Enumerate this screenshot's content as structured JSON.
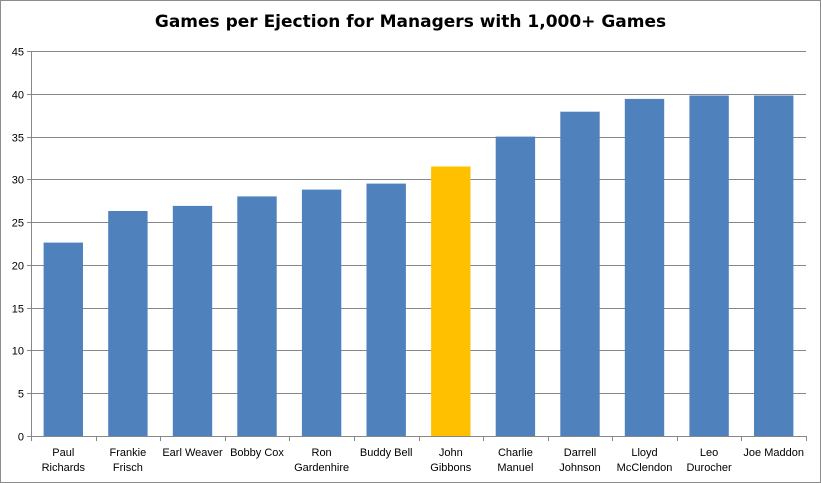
{
  "chart_data": {
    "type": "bar",
    "title": "Games per Ejection for Managers with 1,000+ Games",
    "xlabel": "",
    "ylabel": "",
    "ylim": [
      0,
      45
    ],
    "yticks": [
      0,
      5,
      10,
      15,
      20,
      25,
      30,
      35,
      40,
      45
    ],
    "grid": "horizontal",
    "legend": "none",
    "categories": [
      [
        "Paul",
        "Richards"
      ],
      [
        "Frankie",
        "Frisch"
      ],
      [
        "Earl Weaver"
      ],
      [
        "Bobby Cox"
      ],
      [
        "Ron",
        "Gardenhire"
      ],
      [
        "Buddy Bell"
      ],
      [
        "John",
        "Gibbons"
      ],
      [
        "Charlie",
        "Manuel"
      ],
      [
        "Darrell",
        "Johnson"
      ],
      [
        "Lloyd",
        "McClendon"
      ],
      [
        "Leo",
        "Durocher"
      ],
      [
        "Joe Maddon"
      ]
    ],
    "values": [
      22.6,
      26.3,
      26.9,
      28.0,
      28.8,
      29.5,
      31.5,
      35.0,
      37.9,
      39.4,
      39.8,
      39.8
    ],
    "highlight_index": 6,
    "colors": {
      "bar": "#4f81bd",
      "highlight": "#ffc000",
      "grid": "#878787",
      "axis": "#878787"
    }
  }
}
